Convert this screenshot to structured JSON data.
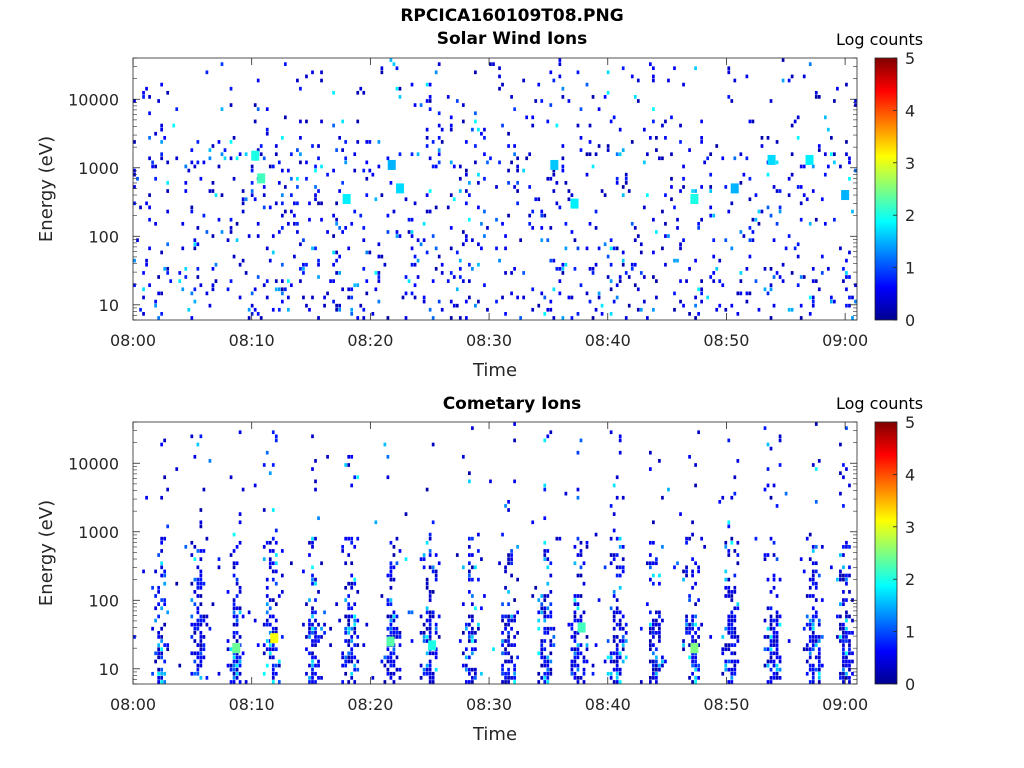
{
  "figure_title": "RPCICA160109T08.PNG",
  "chart_data": [
    {
      "type": "heatmap",
      "title": "Solar Wind Ions",
      "xlabel": "Time",
      "ylabel": "Energy (eV)",
      "x_ticks": [
        "08:00",
        "08:10",
        "08:20",
        "08:30",
        "08:40",
        "08:50",
        "09:00"
      ],
      "x_range": [
        "08:00",
        "09:01"
      ],
      "y_scale": "log",
      "y_ticks": [
        "10",
        "100",
        "1000",
        "10000"
      ],
      "y_range": [
        6,
        40000
      ],
      "colorbar_label": "Log counts",
      "colorbar_ticks": [
        "0",
        "1",
        "2",
        "3",
        "4",
        "5"
      ],
      "colorbar_range": [
        0,
        5
      ],
      "colormap": "jet",
      "hotspots": [
        {
          "time_min": 10.3,
          "energy_ev": 1500,
          "log_counts": 2.0
        },
        {
          "time_min": 10.8,
          "energy_ev": 700,
          "log_counts": 2.2
        },
        {
          "time_min": 18.0,
          "energy_ev": 350,
          "log_counts": 1.8
        },
        {
          "time_min": 21.8,
          "energy_ev": 1100,
          "log_counts": 1.5
        },
        {
          "time_min": 22.5,
          "energy_ev": 500,
          "log_counts": 1.7
        },
        {
          "time_min": 35.5,
          "energy_ev": 1100,
          "log_counts": 1.6
        },
        {
          "time_min": 37.2,
          "energy_ev": 300,
          "log_counts": 1.8
        },
        {
          "time_min": 47.3,
          "energy_ev": 350,
          "log_counts": 2.0
        },
        {
          "time_min": 50.7,
          "energy_ev": 500,
          "log_counts": 1.5
        },
        {
          "time_min": 53.8,
          "energy_ev": 1300,
          "log_counts": 1.7
        },
        {
          "time_min": 57.0,
          "energy_ev": 1300,
          "log_counts": 1.8
        },
        {
          "time_min": 60.0,
          "energy_ev": 400,
          "log_counts": 1.5
        }
      ]
    },
    {
      "type": "heatmap",
      "title": "Cometary Ions",
      "xlabel": "Time",
      "ylabel": "Energy (eV)",
      "x_ticks": [
        "08:00",
        "08:10",
        "08:20",
        "08:30",
        "08:40",
        "08:50",
        "09:00"
      ],
      "x_range": [
        "08:00",
        "09:01"
      ],
      "y_scale": "log",
      "y_ticks": [
        "10",
        "100",
        "1000",
        "10000"
      ],
      "y_range": [
        6,
        40000
      ],
      "colorbar_label": "Log counts",
      "colorbar_ticks": [
        "0",
        "1",
        "2",
        "3",
        "4",
        "5"
      ],
      "colorbar_range": [
        0,
        5
      ],
      "colormap": "jet",
      "bursts_time_min": [
        2.3,
        5.5,
        8.7,
        11.7,
        15.2,
        18.3,
        21.9,
        25.0,
        28.4,
        31.7,
        34.8,
        37.6,
        40.8,
        44.0,
        47.1,
        50.4,
        53.9,
        57.3,
        60.0
      ],
      "hotspots": [
        {
          "time_min": 8.7,
          "energy_ev": 20,
          "log_counts": 2.4
        },
        {
          "time_min": 11.9,
          "energy_ev": 28,
          "log_counts": 3.1
        },
        {
          "time_min": 21.7,
          "energy_ev": 25,
          "log_counts": 2.3
        },
        {
          "time_min": 25.2,
          "energy_ev": 22,
          "log_counts": 2.0
        },
        {
          "time_min": 37.8,
          "energy_ev": 40,
          "log_counts": 2.2
        },
        {
          "time_min": 47.3,
          "energy_ev": 20,
          "log_counts": 2.5
        }
      ]
    }
  ]
}
